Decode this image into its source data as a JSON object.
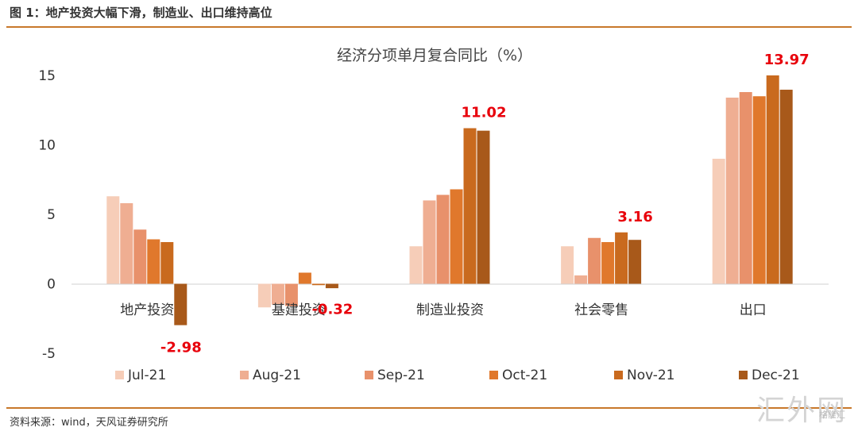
{
  "header": {
    "title": "图 1：地产投资大幅下滑，制造业、出口维持高位"
  },
  "footer": {
    "source": "资料来源：wind，天风证券研究所"
  },
  "watermark": {
    "text": "汇外网",
    "sub": "格隆汇"
  },
  "chart_data": {
    "type": "bar",
    "title": "经济分项单月复合同比（%）",
    "categories": [
      "地产投资",
      "基建投资",
      "制造业投资",
      "社会零售",
      "出口"
    ],
    "series": [
      {
        "name": "Jul-21",
        "color": "#f6cdb8",
        "values": [
          6.3,
          -1.7,
          2.7,
          2.7,
          9.0
        ]
      },
      {
        "name": "Aug-21",
        "color": "#efae92",
        "values": [
          5.8,
          -1.5,
          6.0,
          0.6,
          13.4
        ]
      },
      {
        "name": "Sep-21",
        "color": "#e8916b",
        "values": [
          3.9,
          -1.6,
          6.4,
          3.3,
          13.8
        ]
      },
      {
        "name": "Oct-21",
        "color": "#e0782c",
        "values": [
          3.2,
          0.8,
          6.8,
          3.0,
          13.5
        ]
      },
      {
        "name": "Nov-21",
        "color": "#c96a1e",
        "values": [
          3.0,
          -0.1,
          11.2,
          3.7,
          15.0
        ]
      },
      {
        "name": "Dec-21",
        "color": "#a8591a",
        "values": [
          -2.98,
          -0.32,
          11.02,
          3.16,
          13.97
        ]
      }
    ],
    "yticks": [
      "15",
      "10",
      "5",
      "0",
      "-5"
    ],
    "ylim": [
      -5,
      15
    ],
    "annotations": [
      "-2.98",
      "-0.32",
      "11.02",
      "3.16",
      "13.97"
    ],
    "legend_position": "bottom",
    "grid": false
  }
}
